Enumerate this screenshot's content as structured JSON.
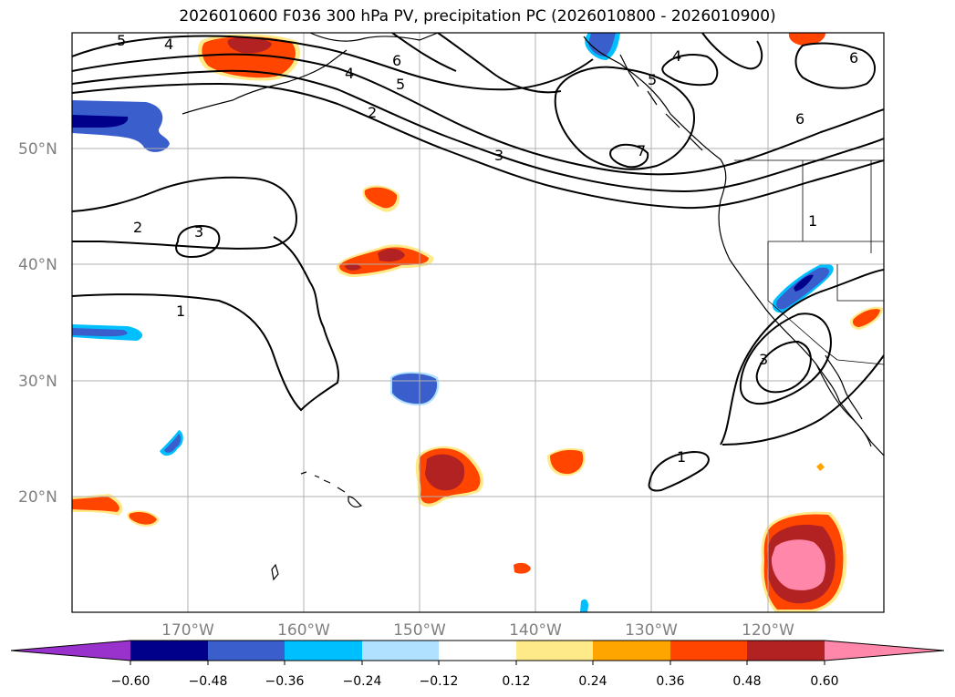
{
  "title": "2026010600 F036 300 hPa PV, precipitation PC (2026010800 - 2026010900)",
  "lat_labels": [
    "50°N",
    "40°N",
    "30°N",
    "20°N"
  ],
  "lon_labels": [
    "170°W",
    "160°W",
    "150°W",
    "140°W",
    "130°W",
    "120°W"
  ],
  "map_extent": {
    "lon_min": -180,
    "lon_max": -110,
    "lat_min": 10,
    "lat_max": 60
  },
  "gridlines": true,
  "contour_labels": [
    "5",
    "4",
    "6",
    "4",
    "5",
    "2",
    "3",
    "7",
    "4",
    "5",
    "6",
    "6",
    "2",
    "3",
    "1",
    "1",
    "3",
    "1"
  ],
  "colorbar": {
    "ticks": [
      "−0.60",
      "−0.48",
      "−0.36",
      "−0.24",
      "−0.12",
      "0.12",
      "0.24",
      "0.36",
      "0.48",
      "0.60"
    ],
    "colors": [
      "#9932cc",
      "#00008b",
      "#3a5fcd",
      "#00bfff",
      "#b0e2ff",
      "#ffffff",
      "#ffea8a",
      "#ffa500",
      "#ff4500",
      "#b22222",
      "#ff88aa"
    ],
    "extend": "both"
  }
}
